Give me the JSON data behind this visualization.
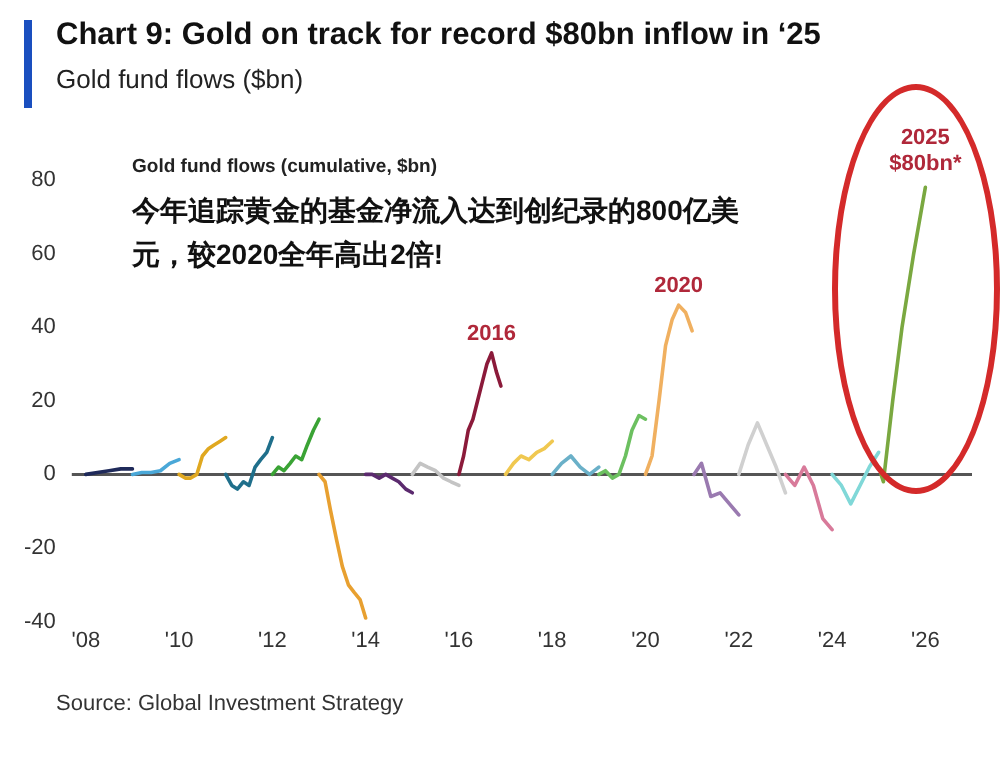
{
  "chart_data": {
    "type": "line",
    "title": "Chart 9: Gold on track for record $80bn inflow in ‘25",
    "subtitle": "Gold fund flows ($bn)",
    "annotations": [
      "Gold fund flows (cumulative, $bn)",
      "今年追踪黄金的基金净流入达到创纪录的800亿美元，较2020全年高出2倍!",
      "Source: Global Investment Strategy",
      {
        "text": "$80bn*",
        "x": 2026,
        "y": 78
      }
    ],
    "xlim": [
      2007.7,
      2027
    ],
    "xticks": [
      {
        "value": 2008,
        "label": "'08"
      },
      {
        "value": 2010,
        "label": "'10"
      },
      {
        "value": 2012,
        "label": "'12"
      },
      {
        "value": 2014,
        "label": "'14"
      },
      {
        "value": 2016,
        "label": "'16"
      },
      {
        "value": 2018,
        "label": "'18"
      },
      {
        "value": 2020,
        "label": "'20"
      },
      {
        "value": 2022,
        "label": "'22"
      },
      {
        "value": 2024,
        "label": "'24"
      },
      {
        "value": 2026,
        "label": "'26"
      }
    ],
    "ylim": [
      -40,
      80
    ],
    "yticks": [
      -40,
      -20,
      0,
      20,
      40,
      60,
      80
    ],
    "ref_lines": [
      {
        "axis": "y",
        "value": 0,
        "color": "#555555"
      }
    ],
    "legend": false,
    "marker": "none",
    "line_style": "solid",
    "series": [
      {
        "color": "#1f2a5a",
        "x": [
          2008,
          2008.25,
          2008.5,
          2008.75,
          2009
        ],
        "values": [
          0,
          0.5,
          1,
          1.5,
          1.5
        ]
      },
      {
        "color": "#4aa8d8",
        "x": [
          2009,
          2009.2,
          2009.4,
          2009.6,
          2009.8,
          2010
        ],
        "values": [
          0,
          0.5,
          0.5,
          1,
          3,
          4
        ]
      },
      {
        "color": "#e0a820",
        "x": [
          2010,
          2010.13,
          2010.25,
          2010.38,
          2010.5,
          2010.63,
          2010.75,
          2010.88,
          2011
        ],
        "values": [
          0,
          -1,
          -1,
          0,
          5,
          7,
          8,
          9,
          10
        ]
      },
      {
        "color": "#1f6f8b",
        "x": [
          2011,
          2011.13,
          2011.25,
          2011.38,
          2011.5,
          2011.63,
          2011.75,
          2011.88,
          2012
        ],
        "values": [
          0,
          -3,
          -4,
          -2,
          -3,
          2,
          4,
          6,
          10
        ]
      },
      {
        "color": "#3aa335",
        "x": [
          2012,
          2012.13,
          2012.25,
          2012.38,
          2012.5,
          2012.63,
          2012.75,
          2012.88,
          2013
        ],
        "values": [
          0,
          2,
          1,
          3,
          5,
          4,
          8,
          12,
          15
        ]
      },
      {
        "color": "#e8a030",
        "x": [
          2013,
          2013.13,
          2013.25,
          2013.38,
          2013.5,
          2013.63,
          2013.75,
          2013.88,
          2014
        ],
        "values": [
          0,
          -2,
          -10,
          -18,
          -25,
          -30,
          -32,
          -34,
          -39
        ]
      },
      {
        "color": "#5b2a6e",
        "x": [
          2014,
          2014.14,
          2014.29,
          2014.43,
          2014.57,
          2014.71,
          2014.86,
          2015
        ],
        "values": [
          0,
          0,
          -1,
          0,
          -1,
          -2,
          -4,
          -5
        ]
      },
      {
        "color": "#c4c4c4",
        "x": [
          2015,
          2015.17,
          2015.33,
          2015.5,
          2015.67,
          2015.83,
          2016
        ],
        "values": [
          0,
          3,
          2,
          1,
          -1,
          -2,
          -3
        ]
      },
      {
        "name": "2016",
        "color": "#8b1a3a",
        "x": [
          2016,
          2016.1,
          2016.2,
          2016.3,
          2016.4,
          2016.5,
          2016.6,
          2016.7,
          2016.8,
          2016.9
        ],
        "values": [
          0,
          5,
          12,
          15,
          20,
          25,
          30,
          33,
          28,
          24
        ]
      },
      {
        "color": "#f0c850",
        "x": [
          2017,
          2017.17,
          2017.33,
          2017.5,
          2017.67,
          2017.83,
          2018
        ],
        "values": [
          0,
          3,
          5,
          4,
          6,
          7,
          9
        ]
      },
      {
        "color": "#6ab0c8",
        "x": [
          2018,
          2018.2,
          2018.4,
          2018.6,
          2018.8,
          2019
        ],
        "values": [
          0,
          3,
          5,
          2,
          0,
          2
        ]
      },
      {
        "color": "#6cc060",
        "x": [
          2019,
          2019.14,
          2019.29,
          2019.43,
          2019.57,
          2019.71,
          2019.86,
          2020
        ],
        "values": [
          0,
          1,
          -1,
          0,
          5,
          12,
          16,
          15
        ]
      },
      {
        "name": "2020",
        "color": "#f0b060",
        "x": [
          2020,
          2020.14,
          2020.29,
          2020.43,
          2020.57,
          2020.71,
          2020.86,
          2021
        ],
        "values": [
          0,
          5,
          20,
          35,
          42,
          46,
          44,
          39
        ]
      },
      {
        "color": "#9a7ab0",
        "x": [
          2021.04,
          2021.2,
          2021.4,
          2021.6,
          2021.8,
          2022
        ],
        "values": [
          0,
          3,
          -6,
          -5,
          -8,
          -11
        ]
      },
      {
        "color": "#d0d0d0",
        "x": [
          2022,
          2022.2,
          2022.4,
          2022.6,
          2022.8,
          2023
        ],
        "values": [
          0,
          8,
          14,
          8,
          2,
          -5
        ]
      },
      {
        "color": "#d87a9a",
        "x": [
          2023,
          2023.2,
          2023.4,
          2023.6,
          2023.8,
          2024
        ],
        "values": [
          0,
          -3,
          2,
          -3,
          -12,
          -15
        ]
      },
      {
        "color": "#80d8d8",
        "x": [
          2024,
          2024.2,
          2024.4,
          2024.6,
          2024.8,
          2025
        ],
        "values": [
          0,
          -3,
          -8,
          -3,
          2,
          6
        ]
      },
      {
        "name": "2025",
        "color": "#7aa840",
        "x": [
          2025.05,
          2025.1,
          2025.3,
          2025.5,
          2025.75,
          2026
        ],
        "values": [
          0,
          -2,
          20,
          40,
          60,
          78
        ]
      }
    ]
  }
}
